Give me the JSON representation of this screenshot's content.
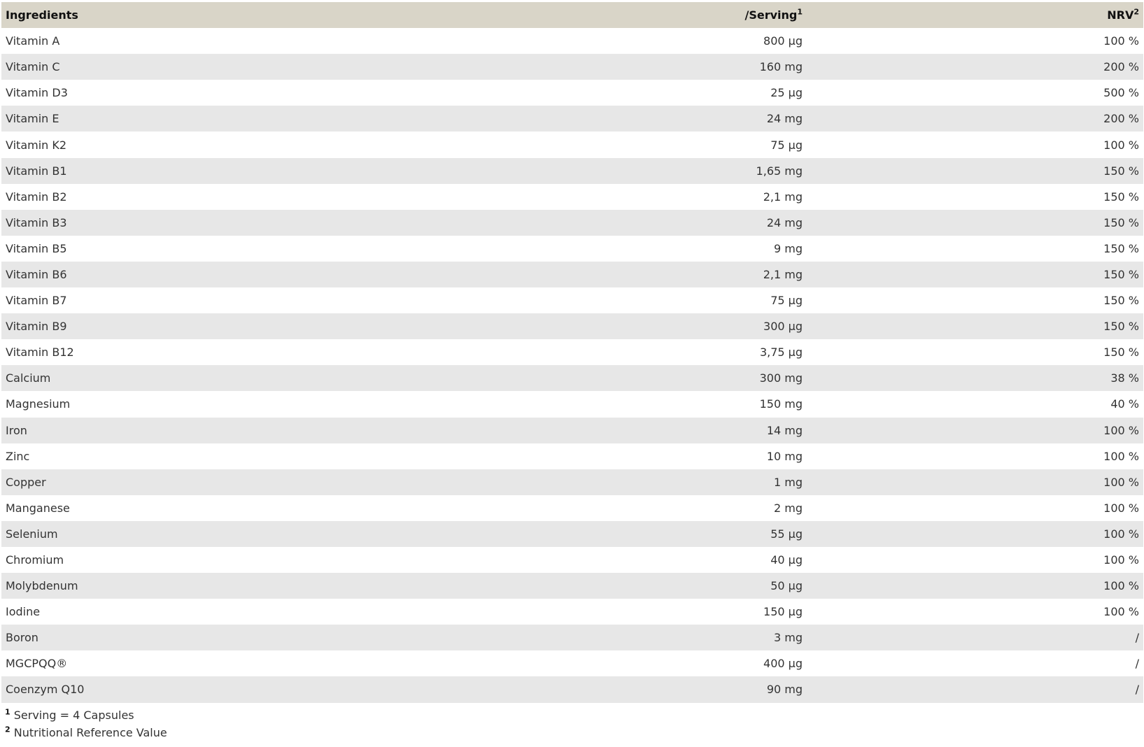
{
  "table": {
    "headers": {
      "ingredient": "Ingredients",
      "serving": "/Serving",
      "serving_sup": "1",
      "nrv": "NRV",
      "nrv_sup": "2"
    },
    "rows": [
      {
        "name": "Vitamin A",
        "serving": "800 µg",
        "nrv": "100 %"
      },
      {
        "name": "Vitamin C",
        "serving": "160 mg",
        "nrv": "200 %"
      },
      {
        "name": "Vitamin D3",
        "serving": "25 µg",
        "nrv": "500 %"
      },
      {
        "name": "Vitamin E",
        "serving": "24 mg",
        "nrv": "200 %"
      },
      {
        "name": "Vitamin K2",
        "serving": "75 µg",
        "nrv": "100 %"
      },
      {
        "name": "Vitamin B1",
        "serving": "1,65 mg",
        "nrv": "150 %"
      },
      {
        "name": "Vitamin B2",
        "serving": "2,1 mg",
        "nrv": "150 %"
      },
      {
        "name": "Vitamin B3",
        "serving": "24 mg",
        "nrv": "150 %"
      },
      {
        "name": "Vitamin B5",
        "serving": "9 mg",
        "nrv": "150 %"
      },
      {
        "name": "Vitamin B6",
        "serving": "2,1 mg",
        "nrv": "150 %"
      },
      {
        "name": "Vitamin B7",
        "serving": "75 µg",
        "nrv": "150 %"
      },
      {
        "name": "Vitamin B9",
        "serving": "300 µg",
        "nrv": "150 %"
      },
      {
        "name": "Vitamin B12",
        "serving": "3,75 µg",
        "nrv": "150 %"
      },
      {
        "name": "Calcium",
        "serving": "300 mg",
        "nrv": "38 %"
      },
      {
        "name": "Magnesium",
        "serving": "150 mg",
        "nrv": "40 %"
      },
      {
        "name": "Iron",
        "serving": "14 mg",
        "nrv": "100 %"
      },
      {
        "name": "Zinc",
        "serving": "10 mg",
        "nrv": "100 %"
      },
      {
        "name": "Copper",
        "serving": "1 mg",
        "nrv": "100 %"
      },
      {
        "name": "Manganese",
        "serving": "2 mg",
        "nrv": "100 %"
      },
      {
        "name": "Selenium",
        "serving": "55 µg",
        "nrv": "100 %"
      },
      {
        "name": "Chromium",
        "serving": "40 µg",
        "nrv": "100 %"
      },
      {
        "name": "Molybdenum",
        "serving": "50 µg",
        "nrv": "100 %"
      },
      {
        "name": "Iodine",
        "serving": "150 µg",
        "nrv": "100 %"
      },
      {
        "name": "Boron",
        "serving": "3 mg",
        "nrv": "/"
      },
      {
        "name": "MGCPQQ®",
        "serving": "400 µg",
        "nrv": "/"
      },
      {
        "name": "Coenzym Q10",
        "serving": "90 mg",
        "nrv": "/"
      }
    ]
  },
  "footnotes": [
    {
      "mark": "1",
      "text": "Serving = 4 Capsules"
    },
    {
      "mark": "2",
      "text": "Nutritional Reference Value"
    }
  ],
  "colors": {
    "header_bg": "#d9d5c8",
    "stripe_bg": "#e7e7e7",
    "text": "#333333"
  }
}
